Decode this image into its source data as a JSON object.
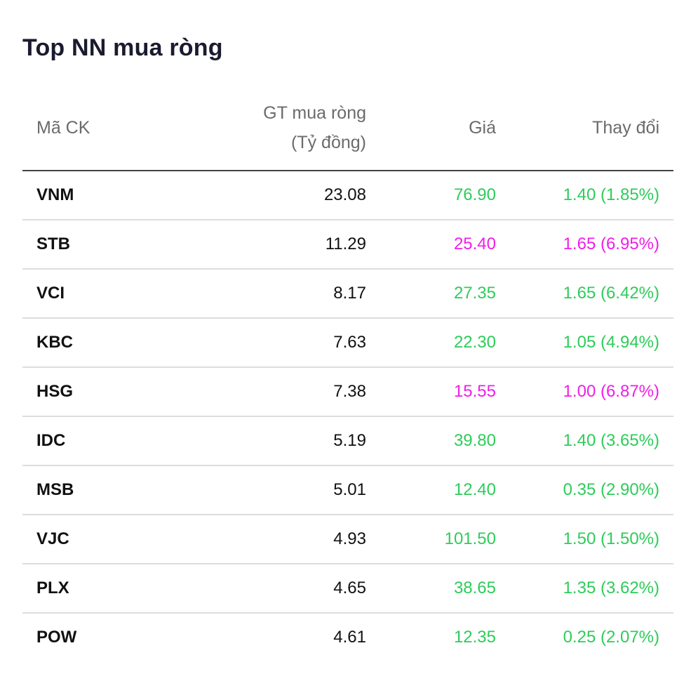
{
  "widget": {
    "title": "Top NN mua ròng"
  },
  "columns": {
    "code": "Mã CK",
    "value_line1": "GT mua ròng",
    "value_line2": "(Tỷ đồng)",
    "price": "Giá",
    "change": "Thay đổi"
  },
  "colors": {
    "up": "#2ecc5a",
    "ceiling": "#f01ee8"
  },
  "rows": [
    {
      "code": "VNM",
      "value": "23.08",
      "price": "76.90",
      "change": "1.40 (1.85%)",
      "status": "up"
    },
    {
      "code": "STB",
      "value": "11.29",
      "price": "25.40",
      "change": "1.65 (6.95%)",
      "status": "ceiling"
    },
    {
      "code": "VCI",
      "value": "8.17",
      "price": "27.35",
      "change": "1.65 (6.42%)",
      "status": "up"
    },
    {
      "code": "KBC",
      "value": "7.63",
      "price": "22.30",
      "change": "1.05 (4.94%)",
      "status": "up"
    },
    {
      "code": "HSG",
      "value": "7.38",
      "price": "15.55",
      "change": "1.00 (6.87%)",
      "status": "ceiling"
    },
    {
      "code": "IDC",
      "value": "5.19",
      "price": "39.80",
      "change": "1.40 (3.65%)",
      "status": "up"
    },
    {
      "code": "MSB",
      "value": "5.01",
      "price": "12.40",
      "change": "0.35 (2.90%)",
      "status": "up"
    },
    {
      "code": "VJC",
      "value": "4.93",
      "price": "101.50",
      "change": "1.50 (1.50%)",
      "status": "up"
    },
    {
      "code": "PLX",
      "value": "4.65",
      "price": "38.65",
      "change": "1.35 (3.62%)",
      "status": "up"
    },
    {
      "code": "POW",
      "value": "4.61",
      "price": "12.35",
      "change": "0.25 (2.07%)",
      "status": "up"
    }
  ]
}
